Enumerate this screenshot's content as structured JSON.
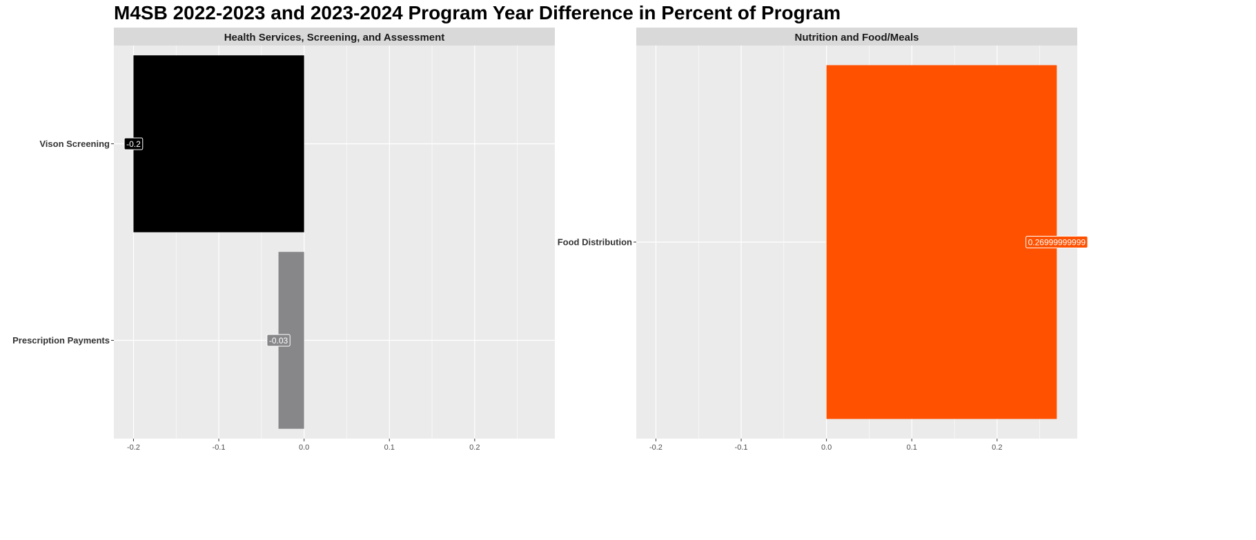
{
  "title": "M4SB 2022-2023 and 2023-2024 Program Year Difference in Percent of Program",
  "chart_data": [
    {
      "type": "bar",
      "orientation": "horizontal",
      "panel_title": "Health Services, Screening, and Assessment",
      "categories": [
        "Vison Screening",
        "Prescription Payments"
      ],
      "values": [
        -0.2,
        -0.03
      ],
      "data_labels": [
        "-0.2",
        "-0.03"
      ],
      "colors": [
        "#000000",
        "#87878a"
      ],
      "xlim": [
        -0.223,
        0.294
      ],
      "x_ticks": [
        -0.2,
        -0.1,
        0.0,
        0.1,
        0.2
      ],
      "x_tick_labels": [
        "-0.2",
        "-0.1",
        "0.0",
        "0.1",
        "0.2"
      ],
      "grid": true,
      "legend": "none"
    },
    {
      "type": "bar",
      "orientation": "horizontal",
      "panel_title": "Nutrition and Food/Meals",
      "categories": [
        "Food Distribution"
      ],
      "values": [
        0.27
      ],
      "data_labels": [
        "0.26999999999"
      ],
      "colors": [
        "#ff5100"
      ],
      "xlim": [
        -0.223,
        0.294
      ],
      "x_ticks": [
        -0.2,
        -0.1,
        0.0,
        0.1,
        0.2
      ],
      "x_tick_labels": [
        "-0.2",
        "-0.1",
        "0.0",
        "0.1",
        "0.2"
      ],
      "grid": true,
      "legend": "none"
    }
  ],
  "theme": {
    "panel_bg": "#ebebeb",
    "strip_bg": "#d9d9d9",
    "grid_color": "#ffffff",
    "label_border": "#ffffff"
  }
}
